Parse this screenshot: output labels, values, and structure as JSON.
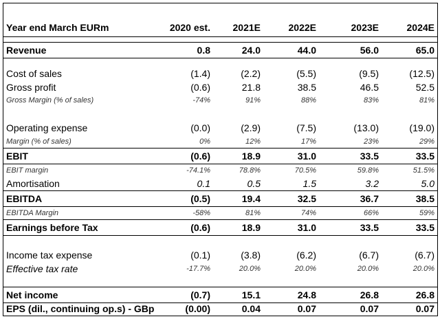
{
  "table": {
    "header": {
      "label": "Year end March EURm",
      "years": [
        "2020 est.",
        "2021E",
        "2022E",
        "2023E",
        "2024E"
      ]
    },
    "revenue": {
      "label": "Revenue",
      "values": [
        "0.8",
        "24.0",
        "44.0",
        "56.0",
        "65.0"
      ]
    },
    "cost_of_sales": {
      "label": "Cost of sales",
      "values": [
        "(1.4)",
        "(2.2)",
        "(5.5)",
        "(9.5)",
        "(12.5)"
      ]
    },
    "gross_profit": {
      "label": "Gross profit",
      "values": [
        "(0.6)",
        "21.8",
        "38.5",
        "46.5",
        "52.5"
      ]
    },
    "gross_margin": {
      "label": "Gross Margin (% of sales)",
      "values": [
        "-74%",
        "91%",
        "88%",
        "83%",
        "81%"
      ]
    },
    "operating_expense": {
      "label": "Operating expense",
      "values": [
        "(0.0)",
        "(2.9)",
        "(7.5)",
        "(13.0)",
        "(19.0)"
      ]
    },
    "margin": {
      "label": "Margin (% of sales)",
      "values": [
        "0%",
        "12%",
        "17%",
        "23%",
        "29%"
      ]
    },
    "ebit": {
      "label": "EBIT",
      "values": [
        "(0.6)",
        "18.9",
        "31.0",
        "33.5",
        "33.5"
      ]
    },
    "ebit_margin": {
      "label": "EBIT margin",
      "values": [
        "-74.1%",
        "78.8%",
        "70.5%",
        "59.8%",
        "51.5%"
      ]
    },
    "amortisation": {
      "label": "Amortisation",
      "values": [
        "0.1",
        "0.5",
        "1.5",
        "3.2",
        "5.0"
      ]
    },
    "ebitda": {
      "label": "EBITDA",
      "values": [
        "(0.5)",
        "19.4",
        "32.5",
        "36.7",
        "38.5"
      ]
    },
    "ebitda_margin": {
      "label": "EBITDA Margin",
      "values": [
        "-58%",
        "81%",
        "74%",
        "66%",
        "59%"
      ]
    },
    "ebt": {
      "label": "Earnings before Tax",
      "values": [
        "(0.6)",
        "18.9",
        "31.0",
        "33.5",
        "33.5"
      ]
    },
    "income_tax": {
      "label": "Income tax expense",
      "values": [
        "(0.1)",
        "(3.8)",
        "(6.2)",
        "(6.7)",
        "(6.7)"
      ]
    },
    "effective_tax_rate": {
      "label": "Effective tax rate",
      "values": [
        "-17.7%",
        "20.0%",
        "20.0%",
        "20.0%",
        "20.0%"
      ]
    },
    "net_income": {
      "label": "Net income",
      "values": [
        "(0.7)",
        "15.1",
        "24.8",
        "26.8",
        "26.8"
      ]
    },
    "eps": {
      "label": "EPS (dil., continuing op.s) - GBp",
      "values": [
        "(0.00)",
        "0.04",
        "0.07",
        "0.07",
        "0.07"
      ]
    }
  }
}
